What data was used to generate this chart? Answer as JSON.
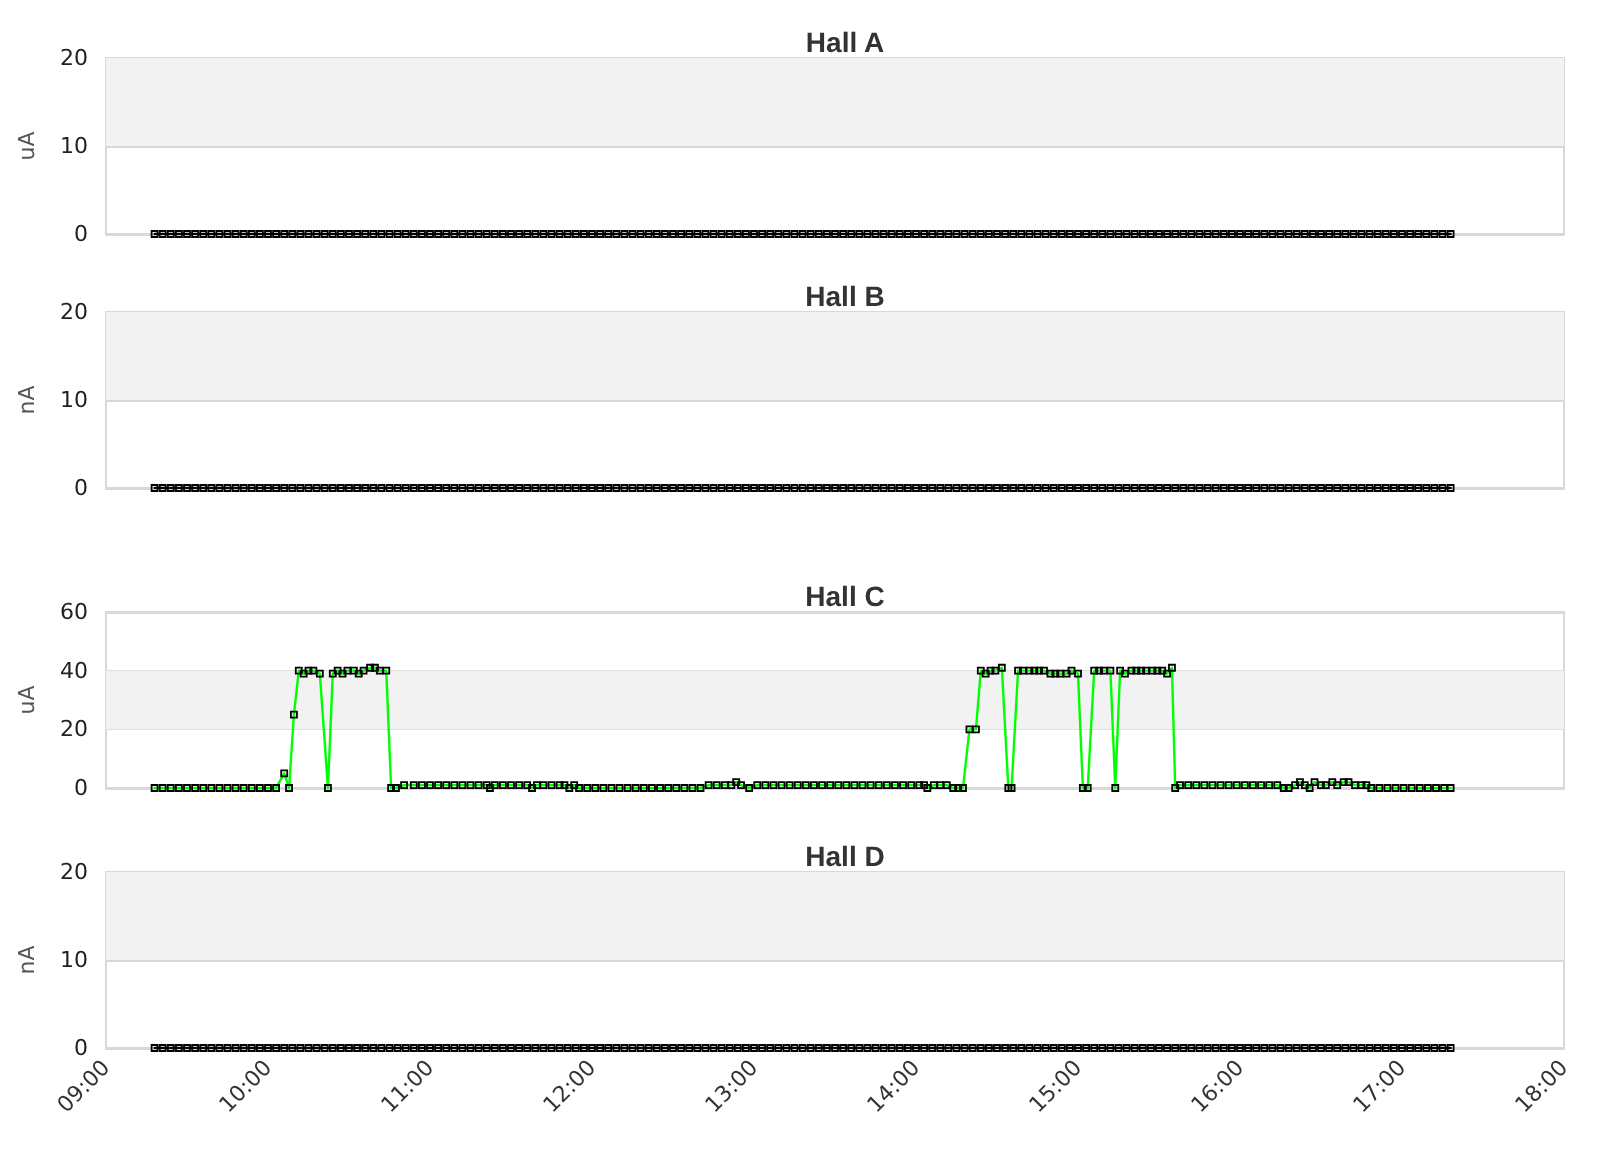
{
  "chart_data": [
    {
      "type": "line",
      "title": "Hall A",
      "ylabel": "uA",
      "xlim": [
        9,
        18
      ],
      "ylim": [
        0,
        20
      ],
      "yticks": [
        0,
        10,
        20
      ],
      "grid": "y",
      "marker": "square",
      "tick_labels": "y",
      "color": "#000000",
      "bands": [
        {
          "axis": "y",
          "from": 10,
          "to": 20,
          "color": "#f2f2f2"
        }
      ],
      "x": [
        9.3,
        9.35,
        9.4,
        9.45,
        9.5,
        9.55,
        9.6,
        9.65,
        9.7,
        9.75,
        9.8,
        9.85,
        9.9,
        9.95,
        10,
        10.05,
        10.1,
        10.15,
        10.2,
        10.25,
        10.3,
        10.35,
        10.4,
        10.45,
        10.5,
        10.55,
        10.6,
        10.65,
        10.7,
        10.75,
        10.8,
        10.85,
        10.9,
        10.95,
        11,
        11.05,
        11.1,
        11.15,
        11.2,
        11.25,
        11.3,
        11.35,
        11.4,
        11.45,
        11.5,
        11.55,
        11.6,
        11.65,
        11.7,
        11.75,
        11.8,
        11.85,
        11.9,
        11.95,
        12,
        12.05,
        12.1,
        12.15,
        12.2,
        12.25,
        12.3,
        12.35,
        12.4,
        12.45,
        12.5,
        12.55,
        12.6,
        12.65,
        12.7,
        12.75,
        12.8,
        12.85,
        12.9,
        12.95,
        13,
        13.05,
        13.1,
        13.15,
        13.2,
        13.25,
        13.3,
        13.35,
        13.4,
        13.45,
        13.5,
        13.55,
        13.6,
        13.65,
        13.7,
        13.75,
        13.8,
        13.85,
        13.9,
        13.95,
        14,
        14.05,
        14.1,
        14.15,
        14.2,
        14.25,
        14.3,
        14.35,
        14.4,
        14.45,
        14.5,
        14.55,
        14.6,
        14.65,
        14.7,
        14.75,
        14.8,
        14.85,
        14.9,
        14.95,
        15,
        15.05,
        15.1,
        15.15,
        15.2,
        15.25,
        15.3,
        15.35,
        15.4,
        15.45,
        15.5,
        15.55,
        15.6,
        15.65,
        15.7,
        15.75,
        15.8,
        15.85,
        15.9,
        15.95,
        16,
        16.05,
        16.1,
        16.15,
        16.2,
        16.25,
        16.3,
        16.35,
        16.4,
        16.45,
        16.5,
        16.55,
        16.6,
        16.65,
        16.7,
        16.75,
        16.8,
        16.85,
        16.9,
        16.95,
        17,
        17.05,
        17.1,
        17.15,
        17.2,
        17.25,
        17.3
      ],
      "values": [
        0,
        0,
        0,
        0,
        0,
        0,
        0,
        0,
        0,
        0,
        0,
        0,
        0,
        0,
        0,
        0,
        0,
        0,
        0,
        0,
        0,
        0,
        0,
        0,
        0,
        0,
        0,
        0,
        0,
        0,
        0,
        0,
        0,
        0,
        0,
        0,
        0,
        0,
        0,
        0,
        0,
        0,
        0,
        0,
        0,
        0,
        0,
        0,
        0,
        0,
        0,
        0,
        0,
        0,
        0,
        0,
        0,
        0,
        0,
        0,
        0,
        0,
        0,
        0,
        0,
        0,
        0,
        0,
        0,
        0,
        0,
        0,
        0,
        0,
        0,
        0,
        0,
        0,
        0,
        0,
        0,
        0,
        0,
        0,
        0,
        0,
        0,
        0,
        0,
        0,
        0,
        0,
        0,
        0,
        0,
        0,
        0,
        0,
        0,
        0,
        0,
        0,
        0,
        0,
        0,
        0,
        0,
        0,
        0,
        0,
        0,
        0,
        0,
        0,
        0,
        0,
        0,
        0,
        0,
        0,
        0,
        0,
        0,
        0,
        0,
        0,
        0,
        0,
        0,
        0,
        0,
        0,
        0,
        0,
        0,
        0,
        0,
        0,
        0,
        0,
        0,
        0,
        0,
        0,
        0,
        0,
        0,
        0,
        0,
        0,
        0,
        0,
        0,
        0,
        0,
        0,
        0,
        0,
        0,
        0,
        0
      ]
    },
    {
      "type": "line",
      "title": "Hall B",
      "ylabel": "nA",
      "xlim": [
        9,
        18
      ],
      "ylim": [
        0,
        20
      ],
      "yticks": [
        0,
        10,
        20
      ],
      "grid": "y",
      "marker": "square",
      "tick_labels": "y",
      "color": "#000000",
      "bands": [
        {
          "axis": "y",
          "from": 10,
          "to": 20,
          "color": "#f2f2f2"
        }
      ],
      "x": [
        9.3,
        9.35,
        9.4,
        9.45,
        9.5,
        9.55,
        9.6,
        9.65,
        9.7,
        9.75,
        9.8,
        9.85,
        9.9,
        9.95,
        10,
        10.05,
        10.1,
        10.15,
        10.2,
        10.25,
        10.3,
        10.35,
        10.4,
        10.45,
        10.5,
        10.55,
        10.6,
        10.65,
        10.7,
        10.75,
        10.8,
        10.85,
        10.9,
        10.95,
        11,
        11.05,
        11.1,
        11.15,
        11.2,
        11.25,
        11.3,
        11.35,
        11.4,
        11.45,
        11.5,
        11.55,
        11.6,
        11.65,
        11.7,
        11.75,
        11.8,
        11.85,
        11.9,
        11.95,
        12,
        12.05,
        12.1,
        12.15,
        12.2,
        12.25,
        12.3,
        12.35,
        12.4,
        12.45,
        12.5,
        12.55,
        12.6,
        12.65,
        12.7,
        12.75,
        12.8,
        12.85,
        12.9,
        12.95,
        13,
        13.05,
        13.1,
        13.15,
        13.2,
        13.25,
        13.3,
        13.35,
        13.4,
        13.45,
        13.5,
        13.55,
        13.6,
        13.65,
        13.7,
        13.75,
        13.8,
        13.85,
        13.9,
        13.95,
        14,
        14.05,
        14.1,
        14.15,
        14.2,
        14.25,
        14.3,
        14.35,
        14.4,
        14.45,
        14.5,
        14.55,
        14.6,
        14.65,
        14.7,
        14.75,
        14.8,
        14.85,
        14.9,
        14.95,
        15,
        15.05,
        15.1,
        15.15,
        15.2,
        15.25,
        15.3,
        15.35,
        15.4,
        15.45,
        15.5,
        15.55,
        15.6,
        15.65,
        15.7,
        15.75,
        15.8,
        15.85,
        15.9,
        15.95,
        16,
        16.05,
        16.1,
        16.15,
        16.2,
        16.25,
        16.3,
        16.35,
        16.4,
        16.45,
        16.5,
        16.55,
        16.6,
        16.65,
        16.7,
        16.75,
        16.8,
        16.85,
        16.9,
        16.95,
        17,
        17.05,
        17.1,
        17.15,
        17.2,
        17.25,
        17.3
      ],
      "values": [
        0,
        0,
        0,
        0,
        0,
        0,
        0,
        0,
        0,
        0,
        0,
        0,
        0,
        0,
        0,
        0,
        0,
        0,
        0,
        0,
        0,
        0,
        0,
        0,
        0,
        0,
        0,
        0,
        0,
        0,
        0,
        0,
        0,
        0,
        0,
        0,
        0,
        0,
        0,
        0,
        0,
        0,
        0,
        0,
        0,
        0,
        0,
        0,
        0,
        0,
        0,
        0,
        0,
        0,
        0,
        0,
        0,
        0,
        0,
        0,
        0,
        0,
        0,
        0,
        0,
        0,
        0,
        0,
        0,
        0,
        0,
        0,
        0,
        0,
        0,
        0,
        0,
        0,
        0,
        0,
        0,
        0,
        0,
        0,
        0,
        0,
        0,
        0,
        0,
        0,
        0,
        0,
        0,
        0,
        0,
        0,
        0,
        0,
        0,
        0,
        0,
        0,
        0,
        0,
        0,
        0,
        0,
        0,
        0,
        0,
        0,
        0,
        0,
        0,
        0,
        0,
        0,
        0,
        0,
        0,
        0,
        0,
        0,
        0,
        0,
        0,
        0,
        0,
        0,
        0,
        0,
        0,
        0,
        0,
        0,
        0,
        0,
        0,
        0,
        0,
        0,
        0,
        0,
        0,
        0,
        0,
        0,
        0,
        0,
        0,
        0,
        0,
        0,
        0,
        0,
        0,
        0,
        0,
        0,
        0,
        0
      ]
    },
    {
      "type": "line",
      "title": "Hall C",
      "ylabel": "uA",
      "xlim": [
        9,
        18
      ],
      "ylim": [
        0,
        60
      ],
      "yticks": [
        0,
        20,
        40,
        60
      ],
      "grid": "y",
      "marker": "square",
      "tick_labels": "y",
      "color": "#00ff00",
      "bands": [
        {
          "axis": "y",
          "from": 20,
          "to": 40,
          "color": "#f2f2f2"
        }
      ],
      "x": [
        9.3,
        9.35,
        9.4,
        9.45,
        9.5,
        9.55,
        9.6,
        9.65,
        9.7,
        9.75,
        9.8,
        9.85,
        9.9,
        9.95,
        10,
        10.05,
        10.1,
        10.13,
        10.16,
        10.19,
        10.22,
        10.25,
        10.28,
        10.32,
        10.37,
        10.4,
        10.43,
        10.46,
        10.49,
        10.53,
        10.56,
        10.59,
        10.63,
        10.66,
        10.69,
        10.73,
        10.76,
        10.79,
        10.84,
        10.9,
        10.95,
        11,
        11.05,
        11.1,
        11.15,
        11.2,
        11.25,
        11.3,
        11.35,
        11.37,
        11.4,
        11.45,
        11.5,
        11.55,
        11.6,
        11.63,
        11.66,
        11.7,
        11.75,
        11.8,
        11.83,
        11.86,
        11.89,
        11.92,
        11.97,
        12.02,
        12.07,
        12.12,
        12.17,
        12.22,
        12.27,
        12.32,
        12.37,
        12.42,
        12.47,
        12.52,
        12.57,
        12.62,
        12.67,
        12.72,
        12.77,
        12.82,
        12.86,
        12.89,
        12.92,
        12.97,
        13.02,
        13.07,
        13.12,
        13.17,
        13.22,
        13.27,
        13.32,
        13.37,
        13.42,
        13.47,
        13.52,
        13.57,
        13.62,
        13.67,
        13.72,
        13.77,
        13.82,
        13.87,
        13.92,
        13.97,
        14.02,
        14.05,
        14.07,
        14.11,
        14.15,
        14.19,
        14.23,
        14.26,
        14.29,
        14.33,
        14.37,
        14.4,
        14.43,
        14.46,
        14.49,
        14.53,
        14.57,
        14.59,
        14.63,
        14.66,
        14.7,
        14.73,
        14.76,
        14.79,
        14.83,
        14.86,
        14.89,
        14.93,
        14.96,
        15,
        15.03,
        15.06,
        15.1,
        15.13,
        15.16,
        15.2,
        15.23,
        15.26,
        15.29,
        15.33,
        15.36,
        15.39,
        15.42,
        15.46,
        15.49,
        15.52,
        15.55,
        15.58,
        15.6,
        15.63,
        15.68,
        15.73,
        15.78,
        15.83,
        15.88,
        15.93,
        15.98,
        16.03,
        16.08,
        16.13,
        16.18,
        16.23,
        16.27,
        16.3,
        16.34,
        16.37,
        16.4,
        16.43,
        16.46,
        16.5,
        16.53,
        16.57,
        16.6,
        16.64,
        16.67,
        16.71,
        16.75,
        16.78,
        16.81,
        16.86,
        16.91,
        16.96,
        17.01,
        17.06,
        17.11,
        17.16,
        17.21,
        17.26,
        17.3
      ],
      "values": [
        0,
        0,
        0,
        0,
        0,
        0,
        0,
        0,
        0,
        0,
        0,
        0,
        0,
        0,
        0,
        0,
        5,
        0,
        25,
        40,
        39,
        40,
        40,
        39,
        0,
        39,
        40,
        39,
        40,
        40,
        39,
        40,
        41,
        41,
        40,
        40,
        0,
        0,
        1,
        1,
        1,
        1,
        1,
        1,
        1,
        1,
        1,
        1,
        1,
        0,
        1,
        1,
        1,
        1,
        1,
        0,
        1,
        1,
        1,
        1,
        1,
        0,
        1,
        0,
        0,
        0,
        0,
        0,
        0,
        0,
        0,
        0,
        0,
        0,
        0,
        0,
        0,
        0,
        0,
        1,
        1,
        1,
        1,
        2,
        1,
        0,
        1,
        1,
        1,
        1,
        1,
        1,
        1,
        1,
        1,
        1,
        1,
        1,
        1,
        1,
        1,
        1,
        1,
        1,
        1,
        1,
        1,
        1,
        0,
        1,
        1,
        1,
        0,
        0,
        0,
        20,
        20,
        40,
        39,
        40,
        40,
        41,
        0,
        0,
        40,
        40,
        40,
        40,
        40,
        40,
        39,
        39,
        39,
        39,
        40,
        39,
        0,
        0,
        40,
        40,
        40,
        40,
        0,
        40,
        39,
        40,
        40,
        40,
        40,
        40,
        40,
        40,
        39,
        41,
        0,
        1,
        1,
        1,
        1,
        1,
        1,
        1,
        1,
        1,
        1,
        1,
        1,
        1,
        0,
        0,
        1,
        2,
        1,
        0,
        2,
        1,
        1,
        2,
        1,
        2,
        2,
        1,
        1,
        1,
        0,
        0,
        0,
        0,
        0,
        0,
        0,
        0,
        0,
        0,
        0
      ]
    },
    {
      "type": "line",
      "title": "Hall D",
      "ylabel": "nA",
      "xlim": [
        9,
        18
      ],
      "xticks": [
        {
          "value": 9,
          "label": "09:00"
        },
        {
          "value": 10,
          "label": "10:00"
        },
        {
          "value": 11,
          "label": "11:00"
        },
        {
          "value": 12,
          "label": "12:00"
        },
        {
          "value": 13,
          "label": "13:00"
        },
        {
          "value": 14,
          "label": "14:00"
        },
        {
          "value": 15,
          "label": "15:00"
        },
        {
          "value": 16,
          "label": "16:00"
        },
        {
          "value": 17,
          "label": "17:00"
        },
        {
          "value": 18,
          "label": "18:00"
        }
      ],
      "ylim": [
        0,
        20
      ],
      "yticks": [
        0,
        10,
        20
      ],
      "grid": "y",
      "marker": "square",
      "color": "#000000",
      "bands": [
        {
          "axis": "y",
          "from": 10,
          "to": 20,
          "color": "#f2f2f2"
        }
      ],
      "x": [
        9.3,
        9.35,
        9.4,
        9.45,
        9.5,
        9.55,
        9.6,
        9.65,
        9.7,
        9.75,
        9.8,
        9.85,
        9.9,
        9.95,
        10,
        10.05,
        10.1,
        10.15,
        10.2,
        10.25,
        10.3,
        10.35,
        10.4,
        10.45,
        10.5,
        10.55,
        10.6,
        10.65,
        10.7,
        10.75,
        10.8,
        10.85,
        10.9,
        10.95,
        11,
        11.05,
        11.1,
        11.15,
        11.2,
        11.25,
        11.3,
        11.35,
        11.4,
        11.45,
        11.5,
        11.55,
        11.6,
        11.65,
        11.7,
        11.75,
        11.8,
        11.85,
        11.9,
        11.95,
        12,
        12.05,
        12.1,
        12.15,
        12.2,
        12.25,
        12.3,
        12.35,
        12.4,
        12.45,
        12.5,
        12.55,
        12.6,
        12.65,
        12.7,
        12.75,
        12.8,
        12.85,
        12.9,
        12.95,
        13,
        13.05,
        13.1,
        13.15,
        13.2,
        13.25,
        13.3,
        13.35,
        13.4,
        13.45,
        13.5,
        13.55,
        13.6,
        13.65,
        13.7,
        13.75,
        13.8,
        13.85,
        13.9,
        13.95,
        14,
        14.05,
        14.1,
        14.15,
        14.2,
        14.25,
        14.3,
        14.35,
        14.4,
        14.45,
        14.5,
        14.55,
        14.6,
        14.65,
        14.7,
        14.75,
        14.8,
        14.85,
        14.9,
        14.95,
        15,
        15.05,
        15.1,
        15.15,
        15.2,
        15.25,
        15.3,
        15.35,
        15.4,
        15.45,
        15.5,
        15.55,
        15.6,
        15.65,
        15.7,
        15.75,
        15.8,
        15.85,
        15.9,
        15.95,
        16,
        16.05,
        16.1,
        16.15,
        16.2,
        16.25,
        16.3,
        16.35,
        16.4,
        16.45,
        16.5,
        16.55,
        16.6,
        16.65,
        16.7,
        16.75,
        16.8,
        16.85,
        16.9,
        16.95,
        17,
        17.05,
        17.1,
        17.15,
        17.2,
        17.25,
        17.3
      ],
      "values": [
        0,
        0,
        0,
        0,
        0,
        0,
        0,
        0,
        0,
        0,
        0,
        0,
        0,
        0,
        0,
        0,
        0,
        0,
        0,
        0,
        0,
        0,
        0,
        0,
        0,
        0,
        0,
        0,
        0,
        0,
        0,
        0,
        0,
        0,
        0,
        0,
        0,
        0,
        0,
        0,
        0,
        0,
        0,
        0,
        0,
        0,
        0,
        0,
        0,
        0,
        0,
        0,
        0,
        0,
        0,
        0,
        0,
        0,
        0,
        0,
        0,
        0,
        0,
        0,
        0,
        0,
        0,
        0,
        0,
        0,
        0,
        0,
        0,
        0,
        0,
        0,
        0,
        0,
        0,
        0,
        0,
        0,
        0,
        0,
        0,
        0,
        0,
        0,
        0,
        0,
        0,
        0,
        0,
        0,
        0,
        0,
        0,
        0,
        0,
        0,
        0,
        0,
        0,
        0,
        0,
        0,
        0,
        0,
        0,
        0,
        0,
        0,
        0,
        0,
        0,
        0,
        0,
        0,
        0,
        0,
        0,
        0,
        0,
        0,
        0,
        0,
        0,
        0,
        0,
        0,
        0,
        0,
        0,
        0,
        0,
        0,
        0,
        0,
        0,
        0,
        0,
        0,
        0,
        0,
        0,
        0,
        0,
        0,
        0,
        0,
        0,
        0,
        0,
        0,
        0,
        0,
        0,
        0,
        0,
        0,
        0
      ]
    }
  ]
}
